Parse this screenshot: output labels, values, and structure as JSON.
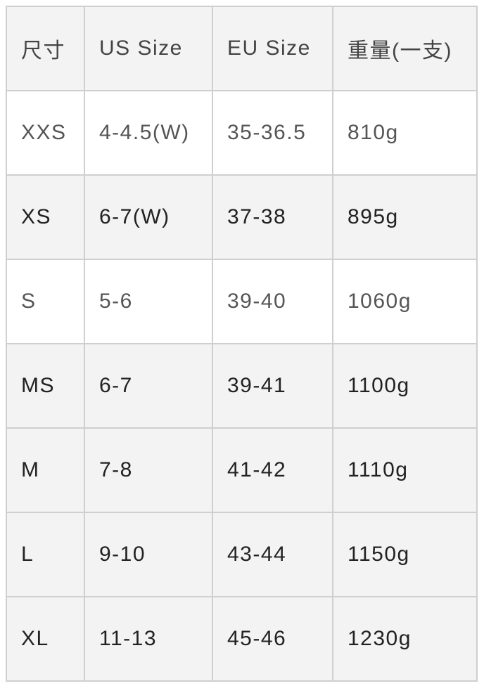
{
  "table": {
    "headers": [
      "尺寸",
      "US Size",
      "EU Size",
      "重量(一支)"
    ],
    "rows": [
      [
        "XXS",
        "4-4.5(W)",
        "35-36.5",
        "810g"
      ],
      [
        "XS",
        "6-7(W)",
        "37-38",
        "895g"
      ],
      [
        "S",
        "5-6",
        "39-40",
        "1060g"
      ],
      [
        "MS",
        "6-7",
        "39-41",
        "1100g"
      ],
      [
        "M",
        "7-8",
        "41-42",
        "1110g"
      ],
      [
        "L",
        "9-10",
        "43-44",
        "1150g"
      ],
      [
        "XL",
        "11-13",
        "45-46",
        "1230g"
      ]
    ]
  }
}
